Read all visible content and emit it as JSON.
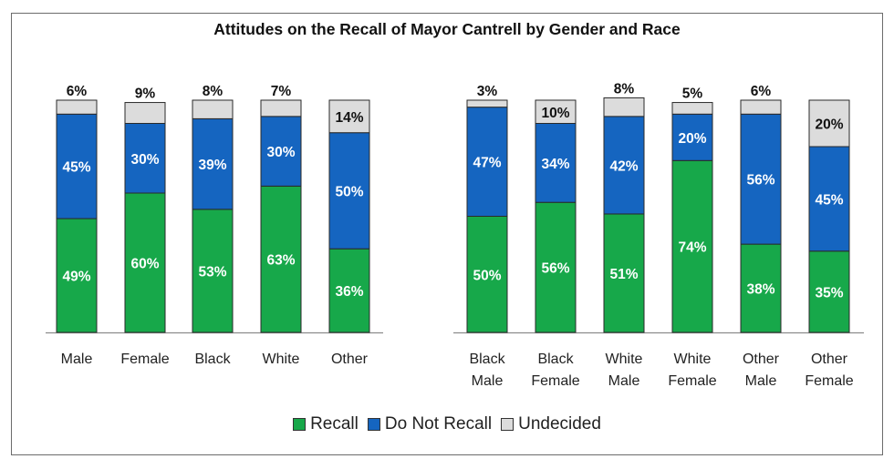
{
  "chart_data": {
    "type": "bar",
    "stacked": true,
    "title": "Attitudes on the Recall of Mayor Cantrell by Gender and Race",
    "groups": [
      {
        "categories": [
          "Male",
          "Female",
          "Black",
          "White",
          "Other"
        ]
      },
      {
        "categories": [
          "Black\nMale",
          "Black\nFemale",
          "White\nMale",
          "White\nFemale",
          "Other\nMale",
          "Other\nFemale"
        ]
      }
    ],
    "categories": [
      "Male",
      "Female",
      "Black",
      "White",
      "Other",
      "Black Male",
      "Black Female",
      "White Male",
      "White Female",
      "Other Male",
      "Other Female"
    ],
    "series": [
      {
        "name": "Recall",
        "color": "#17a84a",
        "values": [
          49,
          60,
          53,
          63,
          36,
          50,
          56,
          51,
          74,
          38,
          35
        ]
      },
      {
        "name": "Do Not Recall",
        "color": "#1565c0",
        "values": [
          45,
          30,
          39,
          30,
          50,
          47,
          34,
          42,
          20,
          56,
          45
        ]
      },
      {
        "name": "Undecided",
        "color": "#dcdcdc",
        "values": [
          6,
          9,
          8,
          7,
          14,
          3,
          10,
          8,
          5,
          6,
          20
        ]
      }
    ],
    "ylim": [
      0,
      100
    ],
    "legend_position": "bottom",
    "grid": false
  }
}
